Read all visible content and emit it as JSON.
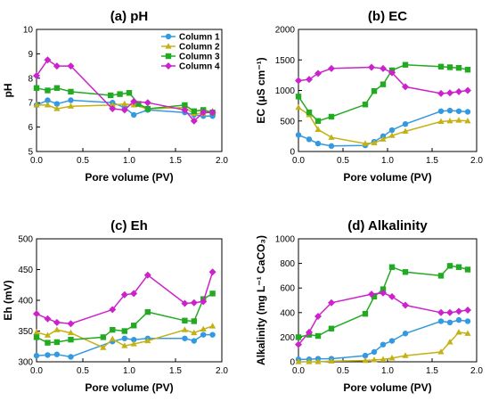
{
  "figure": {
    "series_colors": [
      "#3399e0",
      "#c4b214",
      "#22aa22",
      "#cc22cc"
    ]
  },
  "chart_data": [
    {
      "type": "line",
      "title": "(a) pH",
      "xlabel": "Pore volume (PV)",
      "ylabel": "pH",
      "xlim": [
        0,
        2.0
      ],
      "ylim": [
        5,
        10
      ],
      "xticks": [
        "0.0",
        "0.5",
        "1.0",
        "1.5",
        "2.0"
      ],
      "yticks": [
        "5",
        "6",
        "7",
        "8",
        "9",
        "10"
      ],
      "legend": [
        "Column 1",
        "Column 2",
        "Column 3",
        "Column 4"
      ],
      "legend_position": "top-right",
      "series": [
        {
          "name": "Column 1",
          "x": [
            0,
            0.12,
            0.22,
            0.37,
            0.82,
            0.95,
            1.05,
            1.2,
            1.6,
            1.7,
            1.8,
            1.9
          ],
          "y": [
            6.9,
            7.1,
            6.95,
            7.1,
            7.0,
            6.8,
            6.5,
            6.7,
            6.6,
            6.5,
            6.45,
            6.45
          ]
        },
        {
          "name": "Column 2",
          "x": [
            0,
            0.12,
            0.22,
            0.37,
            0.82,
            0.95,
            1.05,
            1.2,
            1.6,
            1.7,
            1.8,
            1.9
          ],
          "y": [
            6.9,
            6.9,
            6.75,
            6.85,
            6.9,
            6.95,
            6.9,
            6.75,
            6.8,
            6.55,
            6.55,
            6.65
          ]
        },
        {
          "name": "Column 3",
          "x": [
            0,
            0.12,
            0.22,
            0.37,
            0.8,
            0.9,
            1.0,
            1.1,
            1.2,
            1.6,
            1.7,
            1.8,
            1.9
          ],
          "y": [
            7.6,
            7.5,
            7.6,
            7.45,
            7.3,
            7.35,
            7.4,
            6.95,
            6.75,
            6.9,
            6.65,
            6.7,
            6.6
          ]
        },
        {
          "name": "Column 4",
          "x": [
            0,
            0.12,
            0.22,
            0.37,
            0.82,
            0.95,
            1.05,
            1.2,
            1.6,
            1.7,
            1.8,
            1.9
          ],
          "y": [
            8.1,
            8.75,
            8.5,
            8.5,
            6.75,
            6.7,
            7.05,
            7.0,
            6.7,
            6.25,
            6.6,
            6.6
          ]
        }
      ]
    },
    {
      "type": "line",
      "title": "(b) EC",
      "xlabel": "Pore volume (PV)",
      "ylabel": "EC (μS cm⁻¹)",
      "xlim": [
        0,
        2.0
      ],
      "ylim": [
        0,
        2000
      ],
      "xticks": [
        "0.0",
        "0.5",
        "1.0",
        "1.5",
        "2.0"
      ],
      "yticks": [
        "0",
        "500",
        "1000",
        "1500",
        "2000"
      ],
      "series": [
        {
          "name": "Column 1",
          "x": [
            0,
            0.12,
            0.22,
            0.37,
            0.75,
            0.85,
            0.95,
            1.05,
            1.2,
            1.6,
            1.7,
            1.8,
            1.9
          ],
          "y": [
            270,
            200,
            130,
            90,
            100,
            160,
            250,
            350,
            450,
            660,
            670,
            660,
            650
          ]
        },
        {
          "name": "Column 2",
          "x": [
            0,
            0.12,
            0.22,
            0.37,
            0.75,
            0.85,
            0.95,
            1.05,
            1.2,
            1.6,
            1.7,
            1.8,
            1.9
          ],
          "y": [
            720,
            600,
            360,
            230,
            130,
            140,
            200,
            260,
            330,
            490,
            500,
            510,
            500
          ]
        },
        {
          "name": "Column 3",
          "x": [
            0,
            0.12,
            0.22,
            0.37,
            0.75,
            0.85,
            0.95,
            1.05,
            1.2,
            1.6,
            1.7,
            1.8,
            1.9
          ],
          "y": [
            900,
            640,
            500,
            570,
            770,
            990,
            1100,
            1330,
            1420,
            1390,
            1380,
            1370,
            1340
          ]
        },
        {
          "name": "Column 4",
          "x": [
            0,
            0.12,
            0.22,
            0.37,
            0.82,
            0.95,
            1.05,
            1.2,
            1.6,
            1.7,
            1.8,
            1.9
          ],
          "y": [
            1160,
            1180,
            1280,
            1360,
            1380,
            1360,
            1290,
            1060,
            950,
            960,
            980,
            1000
          ]
        }
      ]
    },
    {
      "type": "line",
      "title": "(c) Eh",
      "xlabel": "Pore volume (PV)",
      "ylabel": "Eh (mV)",
      "xlim": [
        0,
        2.0
      ],
      "ylim": [
        300,
        500
      ],
      "xticks": [
        "0.0",
        "0.5",
        "1.0",
        "1.5",
        "2.0"
      ],
      "yticks": [
        "300",
        "350",
        "400",
        "450",
        "500"
      ],
      "series": [
        {
          "name": "Column 1",
          "x": [
            0,
            0.12,
            0.22,
            0.37,
            0.82,
            0.95,
            1.05,
            1.2,
            1.6,
            1.7,
            1.8,
            1.9
          ],
          "y": [
            310,
            311,
            312,
            308,
            333,
            338,
            336,
            338,
            338,
            334,
            344,
            344
          ]
        },
        {
          "name": "Column 2",
          "x": [
            0,
            0.12,
            0.22,
            0.37,
            0.72,
            0.82,
            0.95,
            1.05,
            1.2,
            1.6,
            1.7,
            1.8,
            1.9
          ],
          "y": [
            348,
            343,
            352,
            347,
            323,
            337,
            326,
            329,
            334,
            352,
            347,
            353,
            358
          ]
        },
        {
          "name": "Column 3",
          "x": [
            0,
            0.12,
            0.22,
            0.37,
            0.72,
            0.82,
            0.95,
            1.05,
            1.2,
            1.6,
            1.7,
            1.8,
            1.9
          ],
          "y": [
            340,
            331,
            332,
            336,
            340,
            352,
            350,
            359,
            381,
            367,
            366,
            402,
            411
          ]
        },
        {
          "name": "Column 4",
          "x": [
            0,
            0.12,
            0.22,
            0.37,
            0.82,
            0.95,
            1.05,
            1.2,
            1.6,
            1.7,
            1.8,
            1.9
          ],
          "y": [
            378,
            370,
            364,
            362,
            385,
            409,
            411,
            441,
            395,
            396,
            398,
            446
          ]
        }
      ]
    },
    {
      "type": "line",
      "title": "(d) Alkalinity",
      "xlabel": "Pore volume (PV)",
      "ylabel": "Alkalinity (mg L⁻¹ CaCO₃)",
      "xlim": [
        0,
        2.0
      ],
      "ylim": [
        0,
        1000
      ],
      "xticks": [
        "0.0",
        "0.5",
        "1.0",
        "1.5",
        "2.0"
      ],
      "yticks": [
        "0",
        "200",
        "400",
        "600",
        "800",
        "1000"
      ],
      "series": [
        {
          "name": "Column 1",
          "x": [
            0,
            0.12,
            0.22,
            0.37,
            0.75,
            0.85,
            0.95,
            1.05,
            1.2,
            1.6,
            1.7,
            1.8,
            1.9
          ],
          "y": [
            20,
            20,
            25,
            25,
            50,
            80,
            140,
            170,
            230,
            330,
            320,
            340,
            330
          ]
        },
        {
          "name": "Column 2",
          "x": [
            0,
            0.12,
            0.22,
            0.37,
            0.75,
            0.85,
            0.95,
            1.05,
            1.2,
            1.6,
            1.7,
            1.8,
            1.9
          ],
          "y": [
            0,
            0,
            0,
            5,
            10,
            15,
            20,
            30,
            50,
            80,
            160,
            240,
            230
          ]
        },
        {
          "name": "Column 3",
          "x": [
            0,
            0.12,
            0.22,
            0.37,
            0.75,
            0.85,
            0.95,
            1.05,
            1.2,
            1.6,
            1.7,
            1.8,
            1.9
          ],
          "y": [
            200,
            220,
            210,
            270,
            390,
            530,
            590,
            770,
            730,
            700,
            780,
            770,
            750
          ]
        },
        {
          "name": "Column 4",
          "x": [
            0,
            0.12,
            0.22,
            0.37,
            0.82,
            0.95,
            1.05,
            1.2,
            1.6,
            1.7,
            1.8,
            1.9
          ],
          "y": [
            140,
            240,
            370,
            480,
            550,
            560,
            530,
            460,
            400,
            400,
            410,
            420
          ]
        }
      ]
    }
  ]
}
